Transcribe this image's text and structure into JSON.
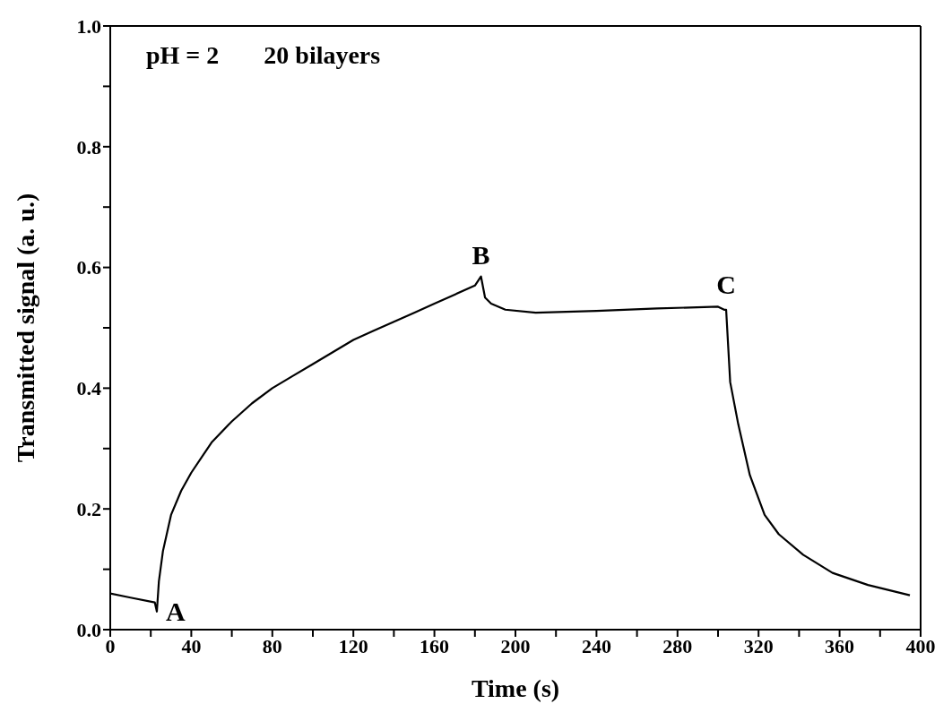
{
  "chart_data": {
    "type": "line",
    "xlabel": "Time (s)",
    "ylabel": "Transmitted signal (a. u.)",
    "xlim": [
      0,
      400
    ],
    "ylim": [
      0,
      1
    ],
    "xticks": [
      0,
      {
        "value": 20,
        "label": null
      },
      40,
      {
        "value": 60,
        "label": null
      },
      80,
      {
        "value": 100,
        "label": null
      },
      120,
      {
        "value": 140,
        "label": null
      },
      160,
      {
        "value": 180,
        "label": null
      },
      200,
      {
        "value": 220,
        "label": null
      },
      240,
      {
        "value": 260,
        "label": null
      },
      280,
      {
        "value": 300,
        "label": null
      },
      320,
      {
        "value": 340,
        "label": null
      },
      360,
      {
        "value": 380,
        "label": null
      },
      400
    ],
    "yticks": [
      {
        "value": 0,
        "label": "0.0"
      },
      {
        "value": 0.1,
        "label": null
      },
      0.2,
      {
        "value": 0.3,
        "label": null
      },
      0.4,
      {
        "value": 0.5,
        "label": null
      },
      0.6,
      {
        "value": 0.7,
        "label": null
      },
      0.8,
      {
        "value": 0.9,
        "label": null
      },
      {
        "value": 1,
        "label": "1.0"
      }
    ],
    "marker": "none",
    "line_style": "solid",
    "x": [
      0,
      10,
      22,
      23,
      24,
      26,
      30,
      35,
      40,
      50,
      60,
      70,
      80,
      90,
      100,
      110,
      120,
      130,
      140,
      150,
      160,
      170,
      180,
      183,
      185,
      188,
      195,
      210,
      240,
      270,
      300,
      303,
      304,
      306,
      310,
      315.7,
      323,
      330,
      342,
      356.5,
      374,
      394.7
    ],
    "series": [
      {
        "color": "#000000",
        "values": [
          0.06,
          0.053,
          0.045,
          0.03,
          0.08,
          0.13,
          0.19,
          0.23,
          0.26,
          0.31,
          0.345,
          0.375,
          0.4,
          0.42,
          0.44,
          0.46,
          0.48,
          0.495,
          0.51,
          0.525,
          0.54,
          0.555,
          0.57,
          0.585,
          0.55,
          0.54,
          0.53,
          0.525,
          0.528,
          0.532,
          0.535,
          0.53,
          0.53,
          0.41,
          0.34,
          0.256,
          0.19,
          0.158,
          0.124,
          0.094,
          0.074,
          0.057
        ]
      }
    ],
    "annotations": [
      "pH = 2",
      "20 bilayers",
      {
        "text": "A",
        "x": 23,
        "y": 0.03
      },
      {
        "text": "B",
        "x": 183,
        "y": 0.585
      },
      {
        "text": "C",
        "x": 304,
        "y": 0.535
      }
    ]
  }
}
